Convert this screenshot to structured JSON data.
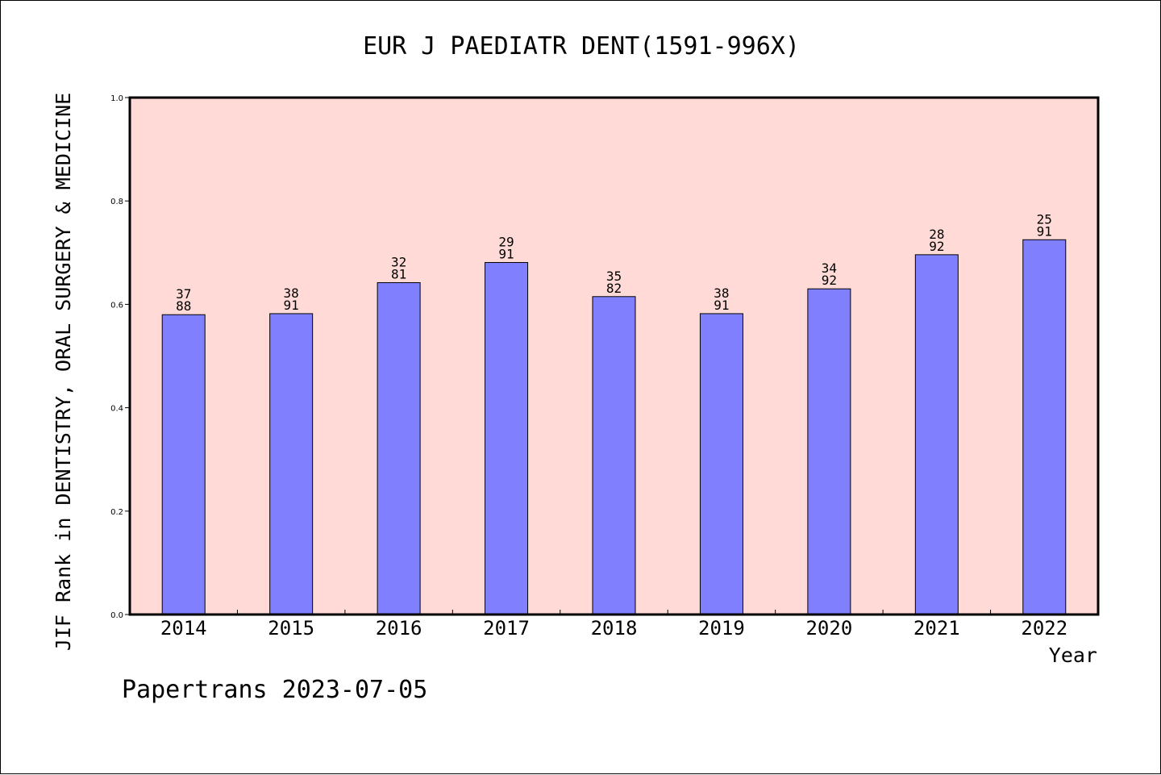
{
  "chart_data": {
    "type": "bar",
    "title": "EUR J PAEDIATR DENT(1591-996X)",
    "xlabel": "Year",
    "ylabel": "JIF Rank in DENTISTRY, ORAL SURGERY & MEDICINE",
    "ylim": [
      0.0,
      1.0
    ],
    "yticks": [
      "0.0",
      "0.2",
      "0.4",
      "0.6",
      "0.8",
      "1.0"
    ],
    "categories": [
      "2014",
      "2015",
      "2016",
      "2017",
      "2018",
      "2019",
      "2020",
      "2021",
      "2022"
    ],
    "values": [
      0.58,
      0.582,
      0.642,
      0.681,
      0.615,
      0.582,
      0.63,
      0.696,
      0.725
    ],
    "labels_top": [
      "37",
      "38",
      "32",
      "29",
      "35",
      "38",
      "34",
      "28",
      "25"
    ],
    "labels_bottom": [
      "88",
      "91",
      "81",
      "91",
      "82",
      "91",
      "92",
      "92",
      "91"
    ],
    "colors": {
      "plot_bg": "#ffdad6",
      "bar": "#8080ff",
      "axis": "#000000"
    },
    "grid": false
  },
  "footer": "Papertrans 2023-07-05"
}
